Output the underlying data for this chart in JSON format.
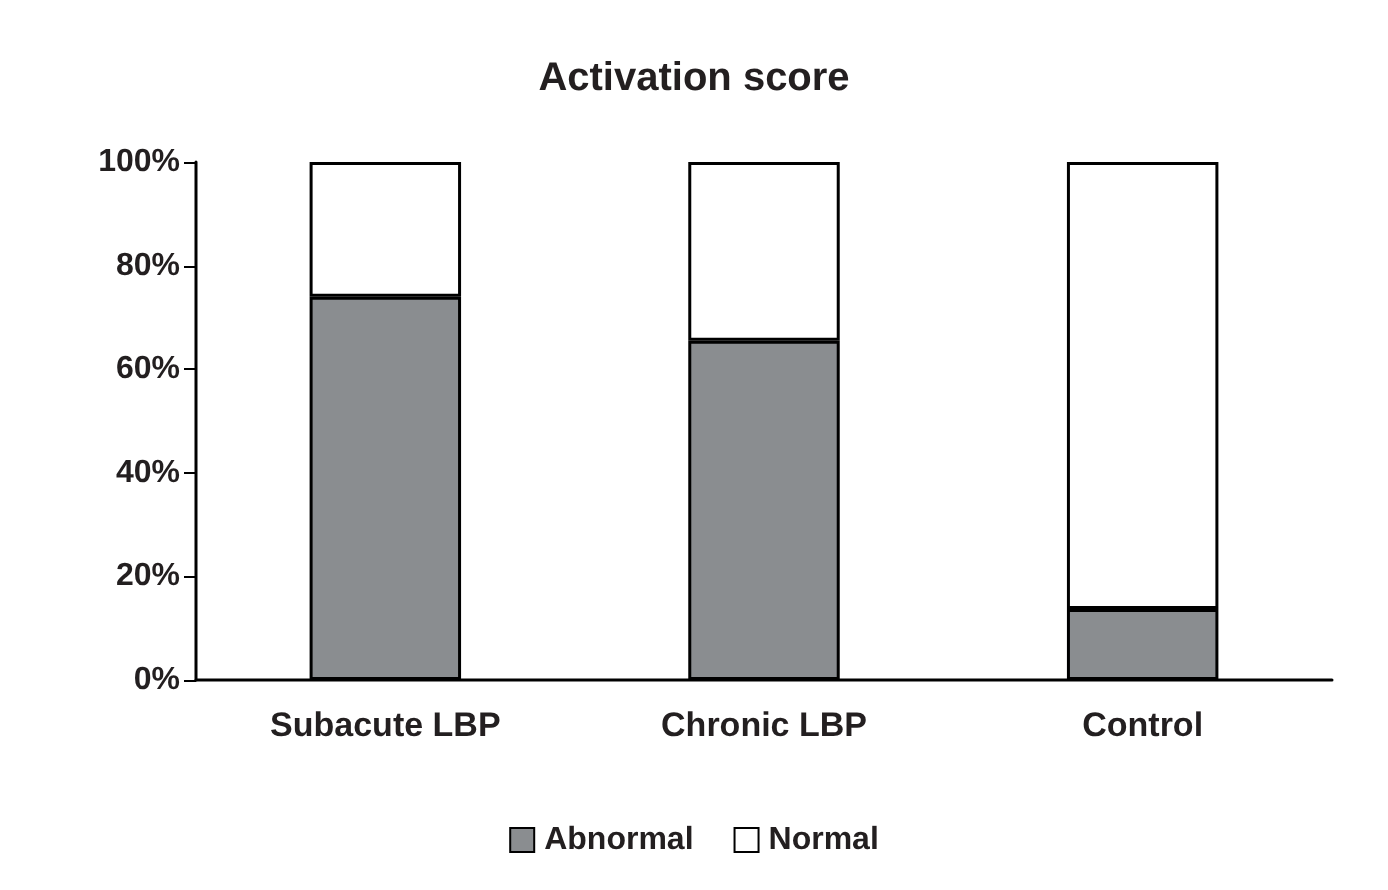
{
  "chart_data": {
    "type": "bar",
    "title": "Activation score",
    "categories": [
      "Subacute LBP",
      "Chronic LBP",
      "Control"
    ],
    "stacked": true,
    "series": [
      {
        "name": "Abnormal",
        "color": "#8a8d90",
        "values": [
          74,
          65.5,
          13.7
        ]
      },
      {
        "name": "Normal",
        "color": "#ffffff",
        "values": [
          26,
          34.5,
          86.3
        ]
      }
    ],
    "ylim": [
      0,
      100
    ],
    "yticks": [
      {
        "value": 0,
        "label": "0%"
      },
      {
        "value": 20,
        "label": "20%"
      },
      {
        "value": 40,
        "label": "40%"
      },
      {
        "value": 60,
        "label": "60%"
      },
      {
        "value": 80,
        "label": "80%"
      },
      {
        "value": 100,
        "label": "100%"
      }
    ],
    "grid": false,
    "legend": "bottom"
  }
}
